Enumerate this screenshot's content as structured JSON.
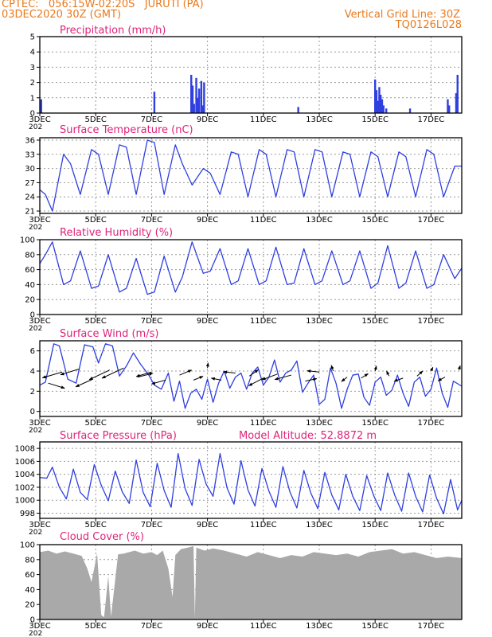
{
  "header": {
    "line1": "CPTEC:   056:15W-02:20S   JURUTI (PA)",
    "line2": "03DEC2020 30Z (GMT)",
    "right1": "Vertical Grid Line: 30Z",
    "right2": "TQ0126L028"
  },
  "x_axis": {
    "labels": [
      "3DEC",
      "5DEC",
      "7DEC",
      "9DEC",
      "11DEC",
      "13DEC",
      "15DEC",
      "17DEC"
    ],
    "day_range": [
      3,
      18.1
    ],
    "year_stub": "202"
  },
  "chart_data": [
    {
      "type": "bar",
      "title": "Precipitation  (mm/h)",
      "ylim": [
        0,
        5
      ],
      "yticks": [
        "0",
        "1",
        "2",
        "3",
        "4",
        "5"
      ],
      "x": [
        3.02,
        3.05,
        7.1,
        8.42,
        8.47,
        8.52,
        8.6,
        8.65,
        8.7,
        8.78,
        8.83,
        8.88,
        12.25,
        15.0,
        15.05,
        15.1,
        15.15,
        15.2,
        15.25,
        15.3,
        15.4,
        16.25,
        17.6,
        17.65,
        17.9,
        17.95
      ],
      "values": [
        0.7,
        0.9,
        1.4,
        2.5,
        1.8,
        0.6,
        2.3,
        1.0,
        1.6,
        2.1,
        0.5,
        2.0,
        0.4,
        2.2,
        1.5,
        0.8,
        1.7,
        1.2,
        0.9,
        0.5,
        0.3,
        0.3,
        0.9,
        0.5,
        1.3,
        2.5
      ]
    },
    {
      "type": "line",
      "title": "Surface Temperature (nC)",
      "ylim": [
        20.5,
        36.5
      ],
      "yticks": [
        "21",
        "24",
        "27",
        "30",
        "33",
        "36"
      ],
      "x": [
        3.0,
        3.2,
        3.45,
        3.85,
        4.1,
        4.45,
        4.85,
        5.1,
        5.45,
        5.85,
        6.1,
        6.45,
        6.85,
        7.1,
        7.45,
        7.85,
        8.1,
        8.45,
        8.85,
        9.1,
        9.45,
        9.85,
        10.1,
        10.45,
        10.85,
        11.1,
        11.45,
        11.85,
        12.1,
        12.45,
        12.85,
        13.1,
        13.45,
        13.85,
        14.1,
        14.45,
        14.85,
        15.1,
        15.45,
        15.85,
        16.1,
        16.45,
        16.85,
        17.1,
        17.45,
        17.85,
        18.1
      ],
      "values": [
        25.5,
        24.5,
        21.0,
        33.0,
        31.0,
        24.5,
        34.0,
        33.0,
        24.5,
        35.0,
        34.5,
        24.5,
        36.0,
        35.5,
        24.5,
        35.0,
        31.0,
        26.5,
        30.0,
        29.0,
        24.5,
        33.5,
        33.0,
        24.0,
        34.0,
        33.0,
        24.0,
        34.0,
        33.5,
        24.0,
        34.0,
        33.5,
        24.0,
        33.5,
        33.0,
        24.0,
        33.5,
        32.5,
        24.0,
        33.5,
        32.5,
        24.0,
        34.0,
        33.0,
        24.0,
        30.5,
        30.5
      ]
    },
    {
      "type": "line",
      "title": "Relative Humidity (%)",
      "ylim": [
        0,
        100
      ],
      "yticks": [
        "0",
        "20",
        "40",
        "60",
        "80",
        "100"
      ],
      "x": [
        3.0,
        3.2,
        3.45,
        3.85,
        4.1,
        4.45,
        4.85,
        5.1,
        5.45,
        5.85,
        6.1,
        6.45,
        6.85,
        7.1,
        7.45,
        7.85,
        8.1,
        8.45,
        8.85,
        9.1,
        9.45,
        9.85,
        10.1,
        10.45,
        10.85,
        11.1,
        11.45,
        11.85,
        12.1,
        12.45,
        12.85,
        13.1,
        13.45,
        13.85,
        14.1,
        14.45,
        14.85,
        15.1,
        15.45,
        15.85,
        16.1,
        16.45,
        16.85,
        17.1,
        17.45,
        17.85,
        18.1
      ],
      "values": [
        68,
        80,
        97,
        40,
        45,
        85,
        35,
        38,
        80,
        30,
        35,
        75,
        27,
        30,
        78,
        30,
        50,
        97,
        55,
        58,
        88,
        40,
        45,
        88,
        40,
        45,
        90,
        40,
        42,
        88,
        40,
        45,
        85,
        40,
        45,
        85,
        35,
        42,
        92,
        35,
        42,
        85,
        35,
        40,
        80,
        48,
        62
      ]
    },
    {
      "type": "line",
      "title": "Surface Wind (m/s)",
      "ylim": [
        -0.5,
        7
      ],
      "yticks": [
        "0",
        "2",
        "4",
        "6"
      ],
      "x": [
        3.0,
        3.2,
        3.5,
        3.7,
        4.0,
        4.3,
        4.6,
        4.9,
        5.1,
        5.35,
        5.6,
        5.85,
        6.1,
        6.35,
        6.6,
        6.9,
        7.1,
        7.35,
        7.6,
        7.8,
        8.0,
        8.2,
        8.4,
        8.6,
        8.8,
        9.0,
        9.2,
        9.4,
        9.6,
        9.8,
        10.0,
        10.2,
        10.4,
        10.6,
        10.8,
        11.0,
        11.2,
        11.4,
        11.6,
        11.8,
        12.0,
        12.2,
        12.4,
        12.6,
        12.8,
        13.0,
        13.2,
        13.4,
        13.6,
        13.8,
        14.0,
        14.2,
        14.4,
        14.6,
        14.8,
        15.0,
        15.2,
        15.4,
        15.6,
        15.8,
        16.0,
        16.2,
        16.4,
        16.6,
        16.8,
        17.0,
        17.2,
        17.4,
        17.6,
        17.8,
        18.1
      ],
      "values": [
        2.6,
        2.9,
        6.7,
        6.5,
        3.2,
        2.8,
        6.6,
        6.4,
        4.8,
        6.7,
        6.5,
        3.5,
        4.5,
        5.8,
        4.7,
        3.6,
        2.6,
        2.2,
        3.8,
        1.0,
        3.0,
        0.3,
        1.8,
        2.2,
        1.2,
        3.2,
        0.9,
        2.8,
        4.0,
        2.3,
        3.4,
        3.8,
        2.2,
        3.8,
        4.4,
        2.6,
        3.4,
        5.1,
        2.9,
        3.8,
        4.1,
        5.0,
        1.9,
        2.8,
        3.6,
        0.7,
        1.2,
        4.3,
        2.8,
        0.3,
        2.2,
        3.6,
        3.7,
        1.4,
        0.6,
        2.9,
        3.4,
        1.6,
        2.1,
        3.6,
        1.8,
        0.5,
        2.9,
        3.4,
        1.5,
        2.2,
        4.3,
        1.8,
        0.4,
        3.0,
        2.5
      ],
      "arrows": [
        {
          "x": 3.3,
          "y": 2.8,
          "dx": 2.6,
          "dy": -0.8
        },
        {
          "x": 3.8,
          "y": 3.9,
          "dx": -3.1,
          "dy": -0.9
        },
        {
          "x": 4.4,
          "y": 4.2,
          "dx": -2.9,
          "dy": -0.9
        },
        {
          "x": 4.9,
          "y": 3.2,
          "dx": -2.7,
          "dy": -1.2
        },
        {
          "x": 5.5,
          "y": 4.1,
          "dx": -3.2,
          "dy": -1.5
        },
        {
          "x": 6.0,
          "y": 4.3,
          "dx": -3.4,
          "dy": -1.6
        },
        {
          "x": 6.5,
          "y": 3.4,
          "dx": 2.4,
          "dy": 0.6
        },
        {
          "x": 7.0,
          "y": 3.9,
          "dx": -2.4,
          "dy": -0.7
        },
        {
          "x": 7.5,
          "y": 3.1,
          "dx": -2.2,
          "dy": -0.6
        },
        {
          "x": 8.0,
          "y": 3.6,
          "dx": 1.9,
          "dy": 0.8
        },
        {
          "x": 8.5,
          "y": 3.1,
          "dx": 1.5,
          "dy": 0.6
        },
        {
          "x": 9.0,
          "y": 4.3,
          "dx": 0.1,
          "dy": 0.8
        },
        {
          "x": 9.5,
          "y": 3.1,
          "dx": -1.6,
          "dy": 0.3
        },
        {
          "x": 10.0,
          "y": 3.8,
          "dx": -1.9,
          "dy": 0.2
        },
        {
          "x": 10.5,
          "y": 3.5,
          "dx": 1.4,
          "dy": 1.0
        },
        {
          "x": 11.0,
          "y": 3.3,
          "dx": -2.3,
          "dy": -1.2
        },
        {
          "x": 11.5,
          "y": 3.7,
          "dx": -2.4,
          "dy": -0.9
        },
        {
          "x": 12.0,
          "y": 3.6,
          "dx": -2.6,
          "dy": -0.7
        },
        {
          "x": 12.5,
          "y": 3.0,
          "dx": 1.8,
          "dy": 0.4
        },
        {
          "x": 13.0,
          "y": 3.9,
          "dx": -1.9,
          "dy": 0.2
        },
        {
          "x": 13.5,
          "y": 4.0,
          "dx": -0.3,
          "dy": 0.9
        },
        {
          "x": 14.0,
          "y": 3.4,
          "dx": -0.9,
          "dy": -0.7
        },
        {
          "x": 14.5,
          "y": 3.3,
          "dx": 1.1,
          "dy": 0.7
        },
        {
          "x": 15.0,
          "y": 4.0,
          "dx": 0.2,
          "dy": 0.8
        },
        {
          "x": 15.5,
          "y": 3.5,
          "dx": -0.4,
          "dy": 0.8
        },
        {
          "x": 16.0,
          "y": 3.3,
          "dx": -1.4,
          "dy": -0.5
        },
        {
          "x": 16.5,
          "y": 3.5,
          "dx": 0.9,
          "dy": 0.8
        },
        {
          "x": 17.0,
          "y": 4.0,
          "dx": 0.3,
          "dy": 0.6
        },
        {
          "x": 17.5,
          "y": 3.4,
          "dx": -1.1,
          "dy": -0.6
        },
        {
          "x": 18.0,
          "y": 4.1,
          "dx": 0.2,
          "dy": 0.7
        }
      ]
    },
    {
      "type": "line",
      "title": "Surface Pressure (hPa)",
      "annotation": "Model Altitude: 52.8872  m",
      "ylim": [
        997.2,
        1009.0
      ],
      "yticks": [
        "998",
        "1000",
        "1002",
        "1004",
        "1006",
        "1008"
      ],
      "x": [
        3.0,
        3.25,
        3.45,
        3.7,
        3.95,
        4.2,
        4.45,
        4.7,
        4.95,
        5.2,
        5.45,
        5.7,
        5.95,
        6.2,
        6.45,
        6.7,
        6.95,
        7.2,
        7.45,
        7.7,
        7.95,
        8.2,
        8.45,
        8.7,
        8.95,
        9.2,
        9.45,
        9.7,
        9.95,
        10.2,
        10.45,
        10.7,
        10.95,
        11.2,
        11.45,
        11.7,
        11.95,
        12.2,
        12.45,
        12.7,
        12.95,
        13.2,
        13.45,
        13.7,
        13.95,
        14.2,
        14.45,
        14.7,
        14.95,
        15.2,
        15.45,
        15.7,
        15.95,
        16.2,
        16.45,
        16.7,
        16.95,
        17.2,
        17.45,
        17.7,
        17.95,
        18.1
      ],
      "values": [
        1003.5,
        1003.4,
        1005.1,
        1002.0,
        1000.2,
        1004.8,
        1001.2,
        1000.1,
        1005.5,
        1002.3,
        999.9,
        1004.5,
        1001.3,
        999.5,
        1006.2,
        1001.2,
        999.0,
        1005.7,
        1001.5,
        998.9,
        1007.2,
        1001.8,
        999.2,
        1006.3,
        1002.5,
        1000.6,
        1007.2,
        1001.9,
        999.4,
        1006.1,
        1001.6,
        999.1,
        1004.9,
        1001.4,
        998.9,
        1005.2,
        1001.3,
        998.8,
        1004.6,
        1001.1,
        998.7,
        1004.3,
        1000.8,
        998.5,
        1004.0,
        1000.6,
        998.4,
        1003.8,
        1000.7,
        998.4,
        1004.2,
        1000.8,
        998.3,
        1004.2,
        1000.6,
        998.2,
        1003.9,
        1000.3,
        997.9,
        1003.2,
        998.5,
        1000.0
      ]
    },
    {
      "type": "area",
      "title": "Cloud Cover (%)",
      "ylim": [
        0,
        100
      ],
      "yticks": [
        "0",
        "20",
        "40",
        "60",
        "80",
        "100"
      ],
      "x": [
        3.0,
        3.3,
        3.6,
        3.9,
        4.2,
        4.5,
        4.7,
        4.85,
        5.05,
        5.2,
        5.3,
        5.45,
        5.55,
        5.8,
        6.0,
        6.4,
        6.7,
        7.0,
        7.2,
        7.4,
        7.6,
        7.75,
        7.85,
        8.05,
        8.3,
        8.5,
        8.55,
        8.6,
        8.9,
        9.2,
        9.6,
        10.0,
        10.4,
        10.8,
        11.2,
        11.6,
        12.0,
        12.4,
        12.8,
        13.2,
        13.6,
        14.0,
        14.4,
        14.8,
        15.2,
        15.6,
        16.0,
        16.4,
        16.8,
        17.2,
        17.6,
        18.1
      ],
      "values": [
        90,
        92,
        88,
        91,
        88,
        85,
        68,
        50,
        88,
        6,
        3,
        58,
        4,
        87,
        88,
        92,
        88,
        90,
        86,
        92,
        68,
        30,
        86,
        94,
        96,
        98,
        2,
        96,
        92,
        95,
        92,
        88,
        84,
        90,
        86,
        82,
        86,
        84,
        90,
        88,
        86,
        88,
        84,
        90,
        92,
        94,
        88,
        90,
        86,
        82,
        84,
        82
      ]
    }
  ]
}
